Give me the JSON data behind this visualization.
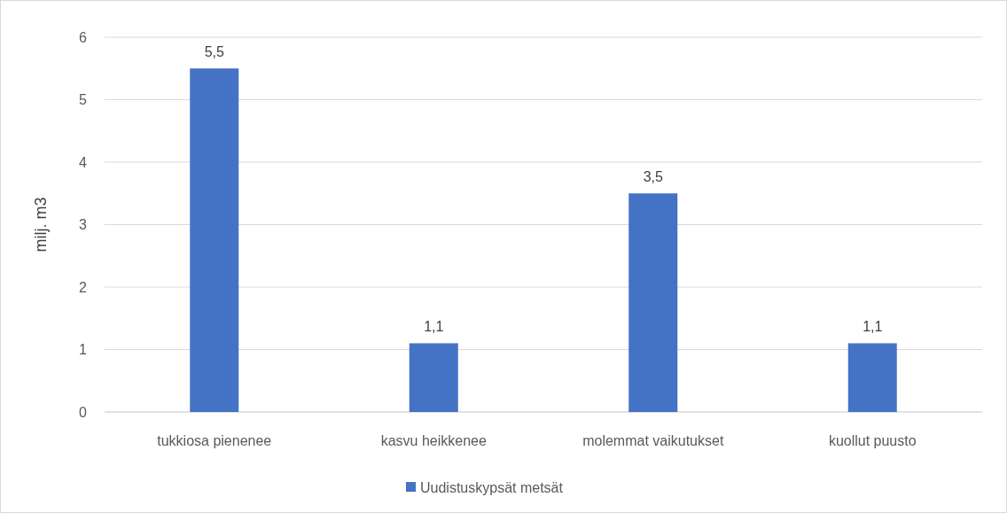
{
  "chart_data": {
    "type": "bar",
    "ylabel": "milj. m3",
    "categories": [
      "tukkiosa pienenee",
      "kasvu heikkenee",
      "molemmat vaikutukset",
      "kuollut puusto"
    ],
    "series": [
      {
        "name": "Uudistuskypsät metsät",
        "color": "#4472c4",
        "values": [
          5.5,
          1.1,
          3.5,
          1.1
        ],
        "value_labels": [
          "5,5",
          "1,1",
          "3,5",
          "1,1"
        ]
      }
    ],
    "ylim": [
      0,
      6
    ],
    "yticks": [
      0,
      1,
      2,
      3,
      4,
      5,
      6
    ],
    "grid": "y",
    "legend": "bottom"
  }
}
